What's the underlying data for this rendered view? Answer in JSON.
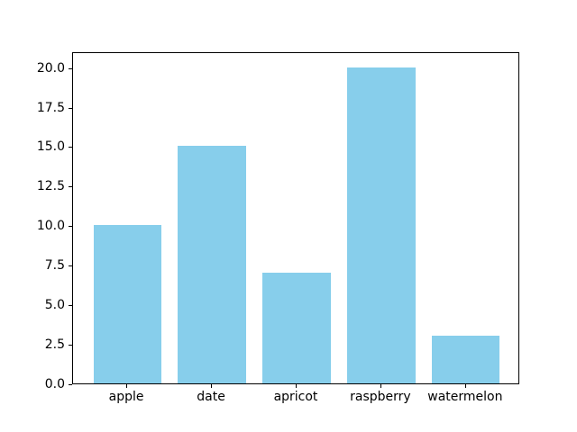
{
  "figure": {
    "background": "#ffffff",
    "axis_color": "#000000",
    "text_color": "#000000"
  },
  "chart_data": {
    "type": "bar",
    "title": "",
    "xlabel": "",
    "ylabel": "",
    "categories": [
      "apple",
      "date",
      "apricot",
      "raspberry",
      "watermelon"
    ],
    "values": [
      10,
      15,
      7,
      20,
      3
    ],
    "bar_color": "#87CEEB",
    "ylim": [
      0,
      21
    ],
    "ytick_values": [
      0,
      2.5,
      5,
      7.5,
      10,
      12.5,
      15,
      17.5,
      20
    ],
    "ytick_labels": [
      "0.0",
      "2.5",
      "5.0",
      "7.5",
      "10.0",
      "12.5",
      "15.0",
      "17.5",
      "20.0"
    ],
    "bar_width_fraction": 0.8,
    "grid": false,
    "legend": "none"
  }
}
